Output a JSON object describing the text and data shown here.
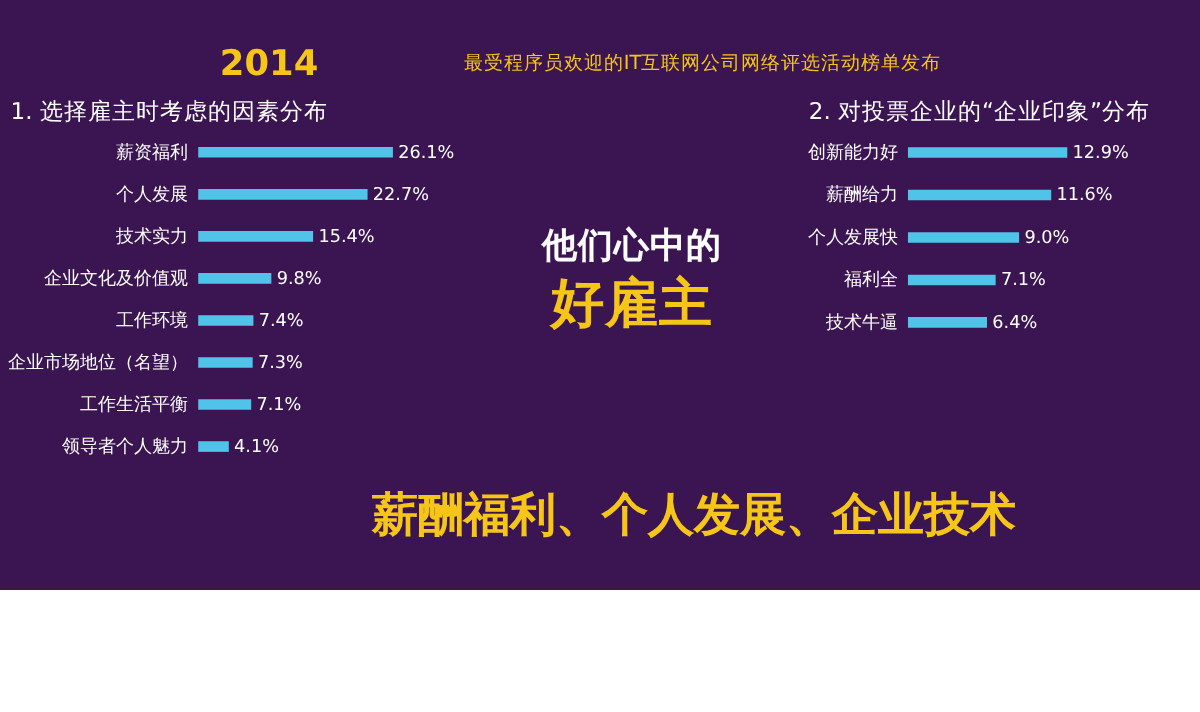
{
  "chart_data": [
    {
      "type": "bar",
      "orientation": "horizontal",
      "title": "1. 选择雇主时考虑的因素分布",
      "categories": [
        "薪资福利",
        "个人发展",
        "技术实力",
        "企业文化及价值观",
        "工作环境",
        "企业市场地位（名望）",
        "工作生活平衡",
        "领导者个人魅力"
      ],
      "values": [
        26.1,
        22.7,
        15.4,
        9.8,
        7.4,
        7.3,
        7.1,
        4.1
      ],
      "value_labels": [
        "26.1%",
        "22.7%",
        "15.4%",
        "9.8%",
        "7.4%",
        "7.3%",
        "7.1%",
        "4.1%"
      ],
      "color": "#4fc3e8"
    },
    {
      "type": "other",
      "annotations": [
        "2014",
        "最受程序员欢迎的IT互联网公司网络评选活动榜单发布",
        "他们心中的",
        "好雇主",
        "薪酬福利、个人发展、企业技术"
      ]
    },
    {
      "type": "bar",
      "orientation": "horizontal",
      "title": "2. 对投票企业的“企业印象”分布",
      "categories": [
        "创新能力好",
        "薪酬给力",
        "个人发展快",
        "福利全",
        "技术牛逼"
      ],
      "values": [
        12.9,
        11.6,
        9.0,
        7.1,
        6.4
      ],
      "value_labels": [
        "12.9%",
        "11.6%",
        "9.0%",
        "7.1%",
        "6.4%"
      ],
      "color": "#4fc3e8"
    }
  ]
}
